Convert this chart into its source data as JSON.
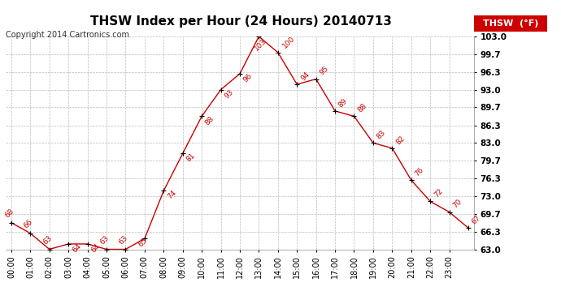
{
  "title": "THSW Index per Hour (24 Hours) 20140713",
  "copyright": "Copyright 2014 Cartronics.com",
  "legend_label": "THSW  (°F)",
  "data_points": [
    68,
    66,
    63,
    64,
    64,
    63,
    63,
    65,
    74,
    81,
    88,
    93,
    96,
    103,
    100,
    94,
    95,
    89,
    88,
    83,
    82,
    76,
    72,
    70,
    67
  ],
  "line_color": "#cc0000",
  "marker_color": "#000000",
  "label_color": "#cc0000",
  "background_color": "#ffffff",
  "grid_color": "#bbbbbb",
  "ylim_min": 63.0,
  "ylim_max": 103.0,
  "yticks": [
    63.0,
    66.3,
    69.7,
    73.0,
    76.3,
    79.7,
    83.0,
    86.3,
    89.7,
    93.0,
    96.3,
    99.7,
    103.0
  ],
  "title_fontsize": 11,
  "copyright_fontsize": 7,
  "legend_fontsize": 8,
  "tick_label_fontsize": 7,
  "data_label_fontsize": 6.5,
  "legend_color": "#cc0000",
  "legend_text_color": "#ffffff"
}
